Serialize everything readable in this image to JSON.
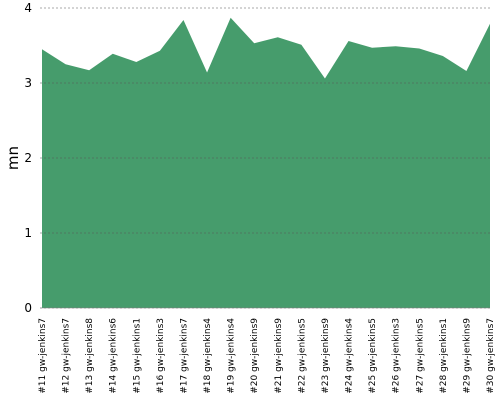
{
  "chart_data": {
    "type": "area",
    "y_label": "mn",
    "categories": [
      "#11 gw-jenkins7",
      "#12 gw-jenkins7",
      "#13 gw-jenkins8",
      "#14 gw-jenkins6",
      "#15 gw-jenkins1",
      "#16 gw-jenkins3",
      "#17 gw-jenkins7",
      "#18 gw-jenkins4",
      "#19 gw-jenkins4",
      "#20 gw-jenkins9",
      "#21 gw-jenkins9",
      "#22 gw-jenkins5",
      "#23 gw-jenkins9",
      "#24 gw-jenkins4",
      "#25 gw-jenkins5",
      "#26 gw-jenkins3",
      "#27 gw-jenkins5",
      "#28 gw-jenkins1",
      "#29 gw-jenkins9",
      "#30 gw-jenkins7"
    ],
    "values": [
      3.45,
      3.25,
      3.17,
      3.39,
      3.28,
      3.43,
      3.84,
      3.14,
      3.87,
      3.53,
      3.61,
      3.51,
      3.06,
      3.56,
      3.47,
      3.49,
      3.46,
      3.36,
      3.16,
      3.79
    ],
    "color": "#469c6c",
    "ylim": [
      0,
      4
    ],
    "yticks": [
      0,
      1,
      2,
      3,
      4
    ],
    "grid": true
  }
}
